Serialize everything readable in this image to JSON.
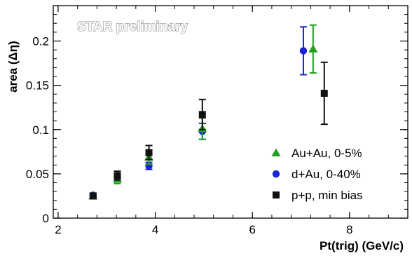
{
  "chart_data": {
    "type": "scatter",
    "watermark": "STAR preliminary",
    "xlabel": "Pt(trig) (GeV/c)",
    "ylabel": "area (Δη)",
    "xlim": [
      1.9,
      9.2
    ],
    "ylim": [
      0,
      0.24
    ],
    "x_ticks": [
      2,
      4,
      6,
      8
    ],
    "x_tick_labels": [
      "2",
      "4",
      "6",
      "8"
    ],
    "y_ticks": [
      0,
      0.05,
      0.1,
      0.15,
      0.2
    ],
    "y_tick_labels": [
      "0",
      "0.05",
      "0.1",
      "0.15",
      "0.2"
    ],
    "legend_position": "bottom-right",
    "series": [
      {
        "name": "Au+Au, 0-5%",
        "marker": "triangle",
        "color": "#1fa01f",
        "errorbar_color": "#1fa01f",
        "points": [
          {
            "x": 2.72,
            "y": 0.025,
            "err": 0.003
          },
          {
            "x": 3.22,
            "y": 0.044,
            "err": 0.005
          },
          {
            "x": 3.87,
            "y": 0.069,
            "err": 0.008
          },
          {
            "x": 4.97,
            "y": 0.101,
            "err": 0.012
          },
          {
            "x": 7.25,
            "y": 0.191,
            "err": 0.027
          }
        ]
      },
      {
        "name": "d+Au, 0-40%",
        "marker": "circle",
        "color": "#1c22d6",
        "errorbar_color": "#1c22d6",
        "points": [
          {
            "x": 2.72,
            "y": 0.026,
            "err": 0.002
          },
          {
            "x": 3.22,
            "y": 0.046,
            "err": 0.004
          },
          {
            "x": 3.87,
            "y": 0.059,
            "err": 0.004
          },
          {
            "x": 4.97,
            "y": 0.098,
            "err": 0.009
          },
          {
            "x": 7.05,
            "y": 0.189,
            "err": 0.027
          }
        ]
      },
      {
        "name": "p+p, min bias",
        "marker": "square",
        "color": "#111111",
        "errorbar_color": "#111111",
        "points": [
          {
            "x": 2.72,
            "y": 0.025,
            "err": 0.003
          },
          {
            "x": 3.22,
            "y": 0.048,
            "err": 0.005
          },
          {
            "x": 3.87,
            "y": 0.074,
            "err": 0.008
          },
          {
            "x": 4.97,
            "y": 0.117,
            "err": 0.017
          },
          {
            "x": 7.48,
            "y": 0.141,
            "err": 0.035
          }
        ]
      }
    ]
  }
}
